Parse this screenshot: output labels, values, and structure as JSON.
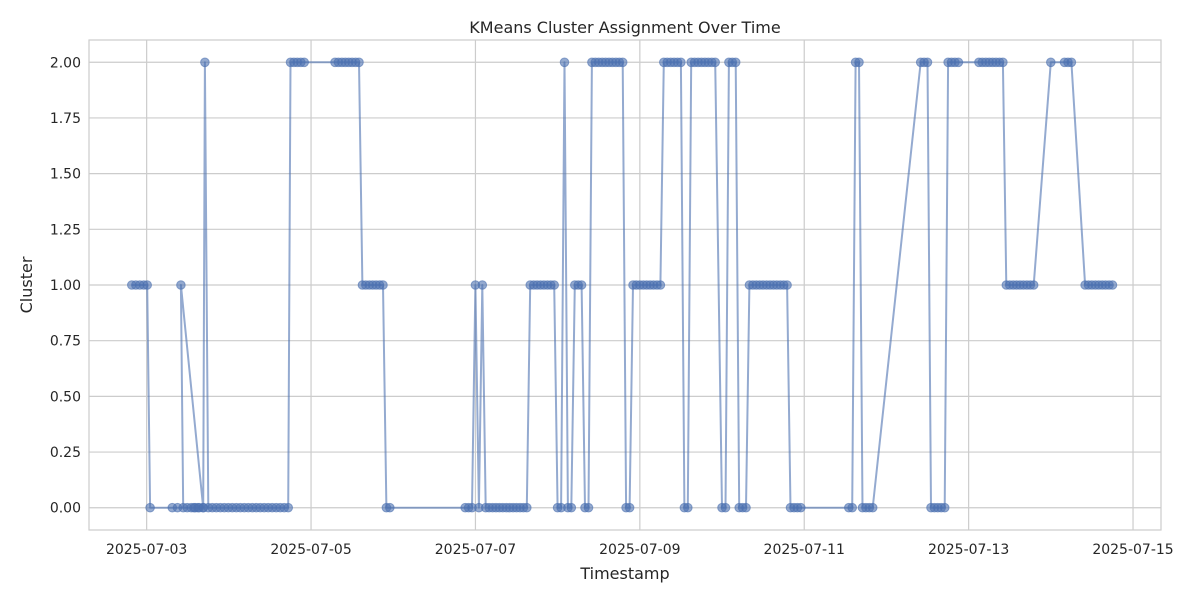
{
  "chart_data": {
    "type": "line",
    "title": "KMeans Cluster Assignment Over Time",
    "xlabel": "Timestamp",
    "ylabel": "Cluster",
    "x_ticks": [
      "2025-07-03",
      "2025-07-05",
      "2025-07-07",
      "2025-07-09",
      "2025-07-11",
      "2025-07-13",
      "2025-07-15"
    ],
    "y_ticks": [
      "0.00",
      "0.25",
      "0.50",
      "0.75",
      "1.00",
      "1.25",
      "1.50",
      "1.75",
      "2.00"
    ],
    "xlim": [
      "2025-07-02T07:10",
      "2025-07-15T08:10"
    ],
    "ylim": [
      -0.1,
      2.1
    ],
    "grid": true,
    "marker": "circle",
    "color": "#4c72b0",
    "series": [
      {
        "x": [
          "2025-07-02T19:40",
          "2025-07-02T20:50",
          "2025-07-02T22:00",
          "2025-07-02T23:10",
          "2025-07-03T00:10",
          "2025-07-03T01:00",
          "2025-07-03T07:30",
          "2025-07-03T09:00",
          "2025-07-03T13:50",
          "2025-07-03T15:00",
          "2025-07-03T16:30",
          "2025-07-03T10:00",
          "2025-07-03T10:40",
          "2025-07-03T11:50",
          "2025-07-03T13:00",
          "2025-07-03T14:10",
          "2025-07-03T15:20",
          "2025-07-03T16:30",
          "2025-07-03T17:00",
          "2025-07-03T18:00",
          "2025-07-03T19:10",
          "2025-07-03T20:20",
          "2025-07-03T21:30",
          "2025-07-03T22:40",
          "2025-07-03T23:50",
          "2025-07-04T01:00",
          "2025-07-04T02:10",
          "2025-07-04T03:20",
          "2025-07-04T04:30",
          "2025-07-04T05:40",
          "2025-07-04T06:50",
          "2025-07-04T08:00",
          "2025-07-04T09:10",
          "2025-07-04T10:20",
          "2025-07-04T11:30",
          "2025-07-04T12:40",
          "2025-07-04T13:50",
          "2025-07-04T15:00",
          "2025-07-04T16:10",
          "2025-07-04T17:20",
          "2025-07-04T18:00",
          "2025-07-04T19:00",
          "2025-07-04T20:00",
          "2025-07-04T21:00",
          "2025-07-04T22:00",
          "2025-07-05T07:00",
          "2025-07-05T08:00",
          "2025-07-05T09:00",
          "2025-07-05T10:00",
          "2025-07-05T11:00",
          "2025-07-05T12:00",
          "2025-07-05T13:00",
          "2025-07-05T14:00",
          "2025-07-05T15:00",
          "2025-07-05T16:00",
          "2025-07-05T17:00",
          "2025-07-05T18:00",
          "2025-07-05T19:00",
          "2025-07-05T20:00",
          "2025-07-05T21:00",
          "2025-07-05T22:00",
          "2025-07-05T23:00",
          "2025-07-06T21:00",
          "2025-07-06T22:00",
          "2025-07-06T23:00",
          "2025-07-07T00:00",
          "2025-07-07T01:00",
          "2025-07-07T02:00",
          "2025-07-07T03:00",
          "2025-07-07T04:00",
          "2025-07-07T05:00",
          "2025-07-07T06:00",
          "2025-07-07T07:00",
          "2025-07-07T08:00",
          "2025-07-07T09:00",
          "2025-07-07T10:00",
          "2025-07-07T11:00",
          "2025-07-07T12:00",
          "2025-07-07T13:00",
          "2025-07-07T14:00",
          "2025-07-07T15:00",
          "2025-07-07T16:00",
          "2025-07-07T17:00",
          "2025-07-07T18:00",
          "2025-07-07T19:00",
          "2025-07-07T20:00",
          "2025-07-07T21:00",
          "2025-07-07T22:00",
          "2025-07-07T23:00",
          "2025-07-08T00:00",
          "2025-07-08T01:00",
          "2025-07-08T02:00",
          "2025-07-08T03:00",
          "2025-07-08T04:00",
          "2025-07-08T05:00",
          "2025-07-08T06:00",
          "2025-07-08T07:00",
          "2025-07-08T08:00",
          "2025-07-08T09:00",
          "2025-07-08T10:00",
          "2025-07-08T11:00",
          "2025-07-08T12:00",
          "2025-07-08T13:00",
          "2025-07-08T14:00",
          "2025-07-08T15:00",
          "2025-07-08T16:00",
          "2025-07-08T17:00",
          "2025-07-08T18:00",
          "2025-07-08T19:00",
          "2025-07-08T20:00",
          "2025-07-08T21:00",
          "2025-07-08T22:00",
          "2025-07-08T23:00",
          "2025-07-09T00:00",
          "2025-07-09T01:00",
          "2025-07-09T02:00",
          "2025-07-09T03:00",
          "2025-07-09T04:00",
          "2025-07-09T05:00",
          "2025-07-09T06:00",
          "2025-07-09T07:00",
          "2025-07-09T08:00",
          "2025-07-09T09:00",
          "2025-07-09T10:00",
          "2025-07-09T11:00",
          "2025-07-09T12:00",
          "2025-07-09T13:00",
          "2025-07-09T14:00",
          "2025-07-09T15:00",
          "2025-07-09T16:00",
          "2025-07-09T17:00",
          "2025-07-09T18:00",
          "2025-07-09T19:00",
          "2025-07-09T20:00",
          "2025-07-09T21:00",
          "2025-07-09T22:00",
          "2025-07-10T00:00",
          "2025-07-10T01:00",
          "2025-07-10T02:00",
          "2025-07-10T03:00",
          "2025-07-10T04:00",
          "2025-07-10T05:00",
          "2025-07-10T06:00",
          "2025-07-10T07:00",
          "2025-07-10T08:00",
          "2025-07-10T09:00",
          "2025-07-10T10:00",
          "2025-07-10T11:00",
          "2025-07-10T12:00",
          "2025-07-10T13:00",
          "2025-07-10T14:00",
          "2025-07-10T15:00",
          "2025-07-10T16:00",
          "2025-07-10T17:00",
          "2025-07-10T18:00",
          "2025-07-10T19:00",
          "2025-07-10T20:00",
          "2025-07-10T21:00",
          "2025-07-10T22:00",
          "2025-07-10T23:00",
          "2025-07-11T13:00",
          "2025-07-11T14:00",
          "2025-07-11T15:00",
          "2025-07-11T16:00",
          "2025-07-11T17:00",
          "2025-07-11T18:00",
          "2025-07-11T19:00",
          "2025-07-11T20:00",
          "2025-07-12T10:00",
          "2025-07-12T11:00",
          "2025-07-12T12:00",
          "2025-07-12T13:00",
          "2025-07-12T14:00",
          "2025-07-12T15:00",
          "2025-07-12T16:00",
          "2025-07-12T17:00",
          "2025-07-12T18:00",
          "2025-07-12T19:00",
          "2025-07-12T20:00",
          "2025-07-12T21:00",
          "2025-07-13T03:00",
          "2025-07-13T04:00",
          "2025-07-13T05:00",
          "2025-07-13T06:00",
          "2025-07-13T07:00",
          "2025-07-13T08:00",
          "2025-07-13T09:00",
          "2025-07-13T10:00",
          "2025-07-13T11:00",
          "2025-07-13T12:00",
          "2025-07-13T13:00",
          "2025-07-13T14:00",
          "2025-07-13T15:00",
          "2025-07-13T16:00",
          "2025-07-13T17:00",
          "2025-07-13T18:00",
          "2025-07-13T19:00",
          "2025-07-14T00:00",
          "2025-07-14T04:00",
          "2025-07-14T05:00",
          "2025-07-14T06:00",
          "2025-07-14T10:00",
          "2025-07-14T11:00",
          "2025-07-14T12:00",
          "2025-07-14T13:00",
          "2025-07-14T14:00",
          "2025-07-14T15:00",
          "2025-07-14T16:00",
          "2025-07-14T17:00",
          "2025-07-14T18:00"
        ],
        "values": [
          1,
          1,
          1,
          1,
          1,
          0,
          0,
          0,
          0,
          0,
          0,
          1,
          0,
          0,
          0,
          0,
          0,
          0,
          2,
          0,
          0,
          0,
          0,
          0,
          0,
          0,
          0,
          0,
          0,
          0,
          0,
          0,
          0,
          0,
          0,
          0,
          0,
          0,
          0,
          0,
          2,
          2,
          2,
          2,
          2,
          2,
          2,
          2,
          2,
          2,
          2,
          2,
          2,
          1,
          1,
          1,
          1,
          1,
          1,
          1,
          0,
          0,
          0,
          0,
          0,
          1,
          0,
          1,
          0,
          0,
          0,
          0,
          0,
          0,
          0,
          0,
          0,
          0,
          0,
          0,
          0,
          1,
          1,
          1,
          1,
          1,
          1,
          1,
          1,
          0,
          0,
          2,
          0,
          0,
          1,
          1,
          1,
          0,
          0,
          2,
          2,
          2,
          2,
          2,
          2,
          2,
          2,
          2,
          2,
          0,
          0,
          1,
          1,
          1,
          1,
          1,
          1,
          1,
          1,
          1,
          2,
          2,
          2,
          2,
          2,
          2,
          0,
          0,
          2,
          2,
          2,
          2,
          2,
          2,
          2,
          2,
          0,
          0,
          2,
          2,
          2,
          0,
          0,
          0,
          1,
          1,
          1,
          1,
          1,
          1,
          1,
          1,
          1,
          1,
          1,
          1,
          0,
          0,
          0,
          0,
          0,
          0,
          2,
          2,
          0,
          0,
          0,
          0,
          2,
          2,
          2,
          0,
          0,
          0,
          0,
          0,
          2,
          2,
          2,
          2,
          2,
          2,
          2,
          2,
          2,
          2,
          2,
          2,
          1,
          1,
          1,
          1,
          1,
          1,
          1,
          1,
          1,
          2,
          2,
          2,
          2,
          1,
          1,
          1,
          1,
          1,
          1,
          1,
          1,
          1
        ]
      }
    ]
  }
}
